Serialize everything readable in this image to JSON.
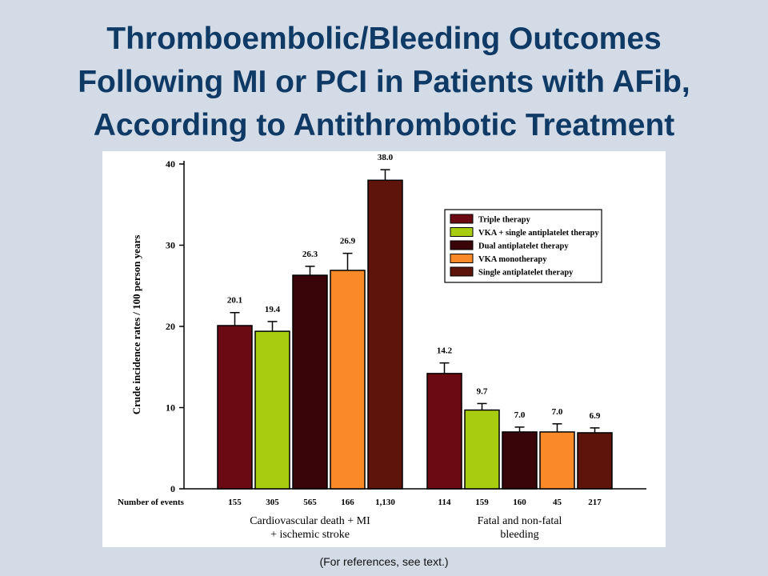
{
  "slide": {
    "title_lines": [
      "Thromboembolic/Bleeding Outcomes",
      "Following MI or PCI in Patients with AFib,",
      "According to Antithrombotic Treatment"
    ],
    "footnote": "(For references, see text.)",
    "background_color": "#d2dbe6",
    "title_color": "#0f3a66"
  },
  "chart_data": {
    "type": "bar",
    "ylabel": "Crude incidence rates / 100 person years",
    "ylim": [
      0,
      40
    ],
    "yticks": [
      0,
      10,
      20,
      30,
      40
    ],
    "grid": false,
    "legend_position": "top-right",
    "events_row_label": "Number of events",
    "groups": [
      {
        "label_lines": [
          "Cardiovascular death + MI",
          "+ ischemic stroke"
        ],
        "values": [
          20.1,
          19.4,
          26.3,
          26.9,
          38.0
        ],
        "value_labels": [
          "20.1",
          "19.4",
          "26.3",
          "26.9",
          "38.0"
        ],
        "error_upper": [
          21.7,
          20.6,
          27.4,
          29.0,
          39.3
        ],
        "events": [
          "155",
          "305",
          "565",
          "166",
          "1,130"
        ]
      },
      {
        "label_lines": [
          "Fatal and non-fatal",
          "bleeding"
        ],
        "values": [
          14.2,
          9.7,
          7.0,
          7.0,
          6.9
        ],
        "value_labels": [
          "14.2",
          "9.7",
          "7.0",
          "7.0",
          "6.9"
        ],
        "error_upper": [
          15.5,
          10.5,
          7.6,
          8.0,
          7.5
        ],
        "events": [
          "114",
          "159",
          "160",
          "45",
          "217"
        ]
      }
    ],
    "series": [
      {
        "name": "Triple therapy",
        "color": "#6b0a12"
      },
      {
        "name": "VKA + single antiplatelet therapy",
        "color": "#a8cc10"
      },
      {
        "name": "Dual antiplatelet therapy",
        "color": "#3a0508"
      },
      {
        "name": "VKA monotherapy",
        "color": "#fa8a28"
      },
      {
        "name": "Single antiplatelet therapy",
        "color": "#5e130b"
      }
    ]
  }
}
